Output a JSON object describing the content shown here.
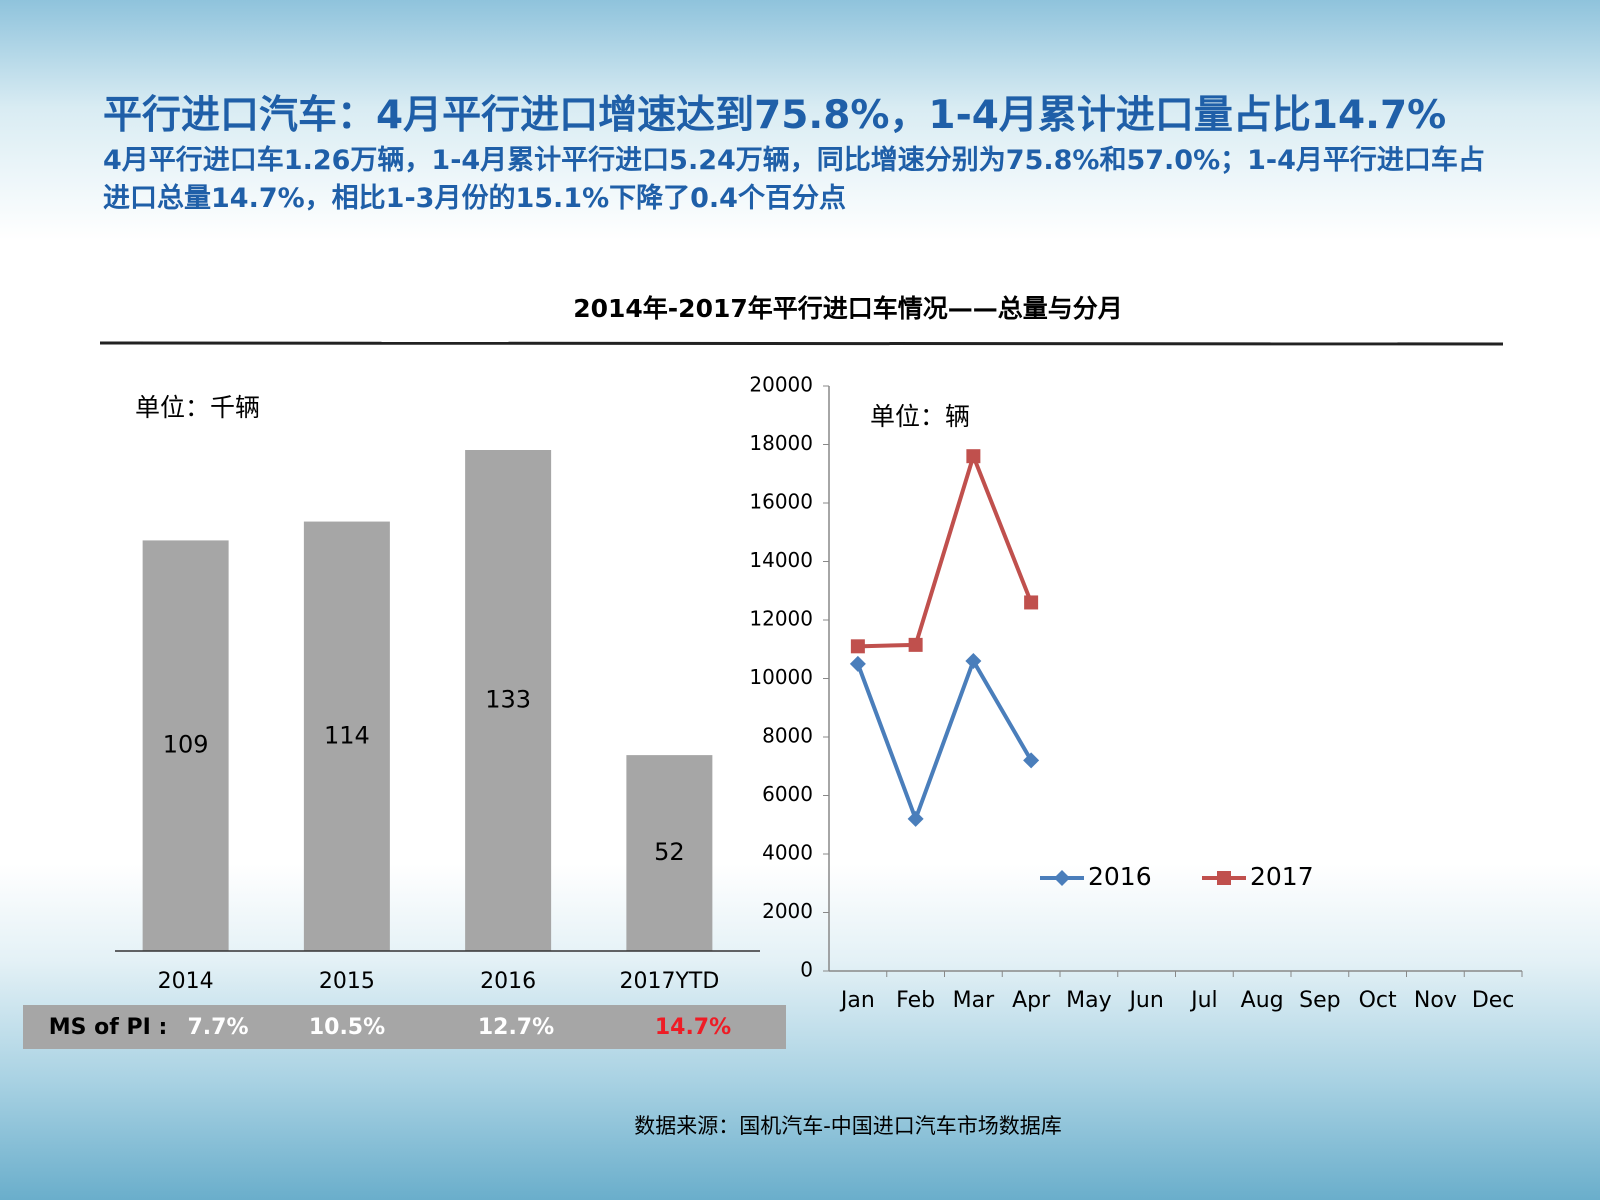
{
  "header": {
    "title": "平行进口汽车：4月平行进口增速达到75.8%，1-4月累计进口量占比14.7%",
    "subtitle": "4月平行进口车1.26万辆，1-4月累计平行进口5.24万辆，同比增速分别为75.8%和57.0%；1-4月平行进口车占进口总量14.7%，相比1-3月份的15.1%下降了0.4个百分点"
  },
  "section_title": "2014年-2017年平行进口车情况——总量与分月",
  "source": "数据来源：国机汽车-中国进口汽车市场数据库",
  "chart_data": [
    {
      "type": "bar",
      "unit_label": "单位：千辆",
      "categories": [
        "2014",
        "2015",
        "2016",
        "2017YTD"
      ],
      "values": [
        109,
        114,
        133,
        52
      ],
      "color": "#a6a6a6",
      "market_share": {
        "label": "MS of PI :",
        "values": [
          7.7,
          10.5,
          12.7,
          14.7
        ],
        "value_labels": [
          "7.7%",
          "10.5%",
          "12.7%",
          "14.7%"
        ],
        "colors": [
          "#ffffff",
          "#ffffff",
          "#ffffff",
          "#ee1c25"
        ],
        "background": "#a6a6a6"
      }
    },
    {
      "type": "line",
      "unit_label": "单位：辆",
      "categories": [
        "Jan",
        "Feb",
        "Mar",
        "Apr",
        "May",
        "Jun",
        "Jul",
        "Aug",
        "Sep",
        "Oct",
        "Nov",
        "Dec"
      ],
      "series": [
        {
          "name": "2016",
          "color": "#4a7ebb",
          "marker": "diamond",
          "values": [
            10500,
            5200,
            10600,
            7200,
            null,
            null,
            null,
            null,
            null,
            null,
            null,
            null
          ]
        },
        {
          "name": "2017",
          "color": "#c0504d",
          "marker": "square",
          "values": [
            11100,
            11150,
            17600,
            12600,
            null,
            null,
            null,
            null,
            null,
            null,
            null,
            null
          ]
        }
      ],
      "ylim": [
        0,
        20000
      ],
      "yticks": [
        0,
        2000,
        4000,
        6000,
        8000,
        10000,
        12000,
        14000,
        16000,
        18000,
        20000
      ],
      "legend": "bottom"
    }
  ]
}
